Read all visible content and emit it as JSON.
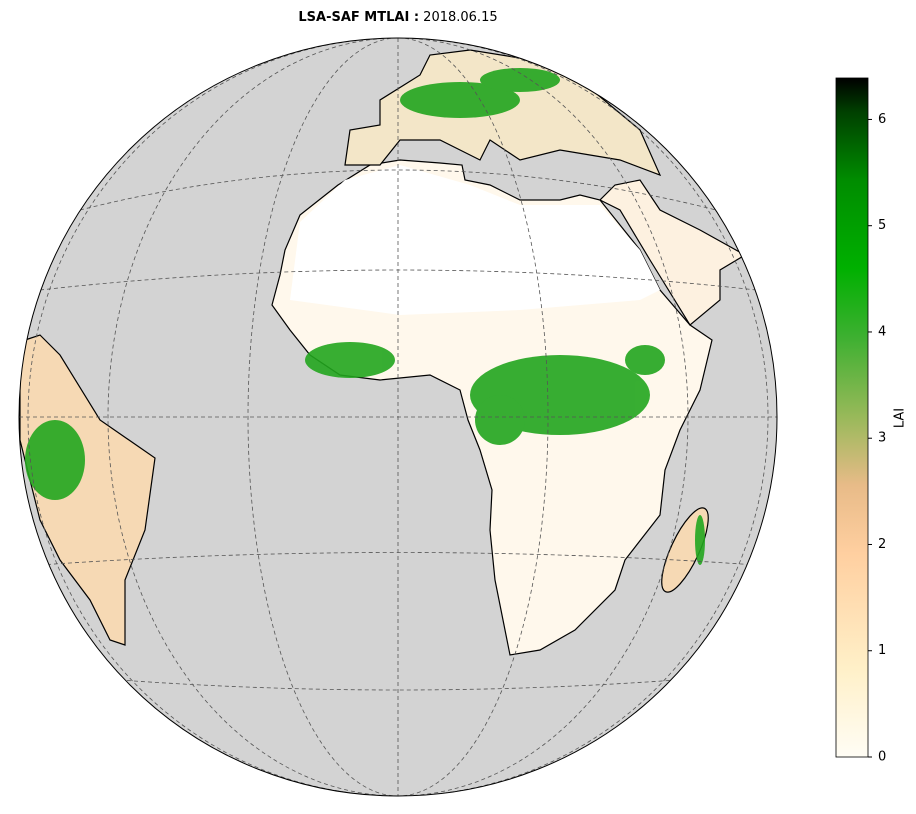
{
  "title": {
    "product": "LSA-SAF MTLAI :",
    "date": "2018.06.15"
  },
  "colorbar": {
    "label": "LAI",
    "lim": [
      0,
      6.39
    ],
    "ticks": [
      0,
      1,
      2,
      3,
      4,
      5,
      6
    ]
  }
}
